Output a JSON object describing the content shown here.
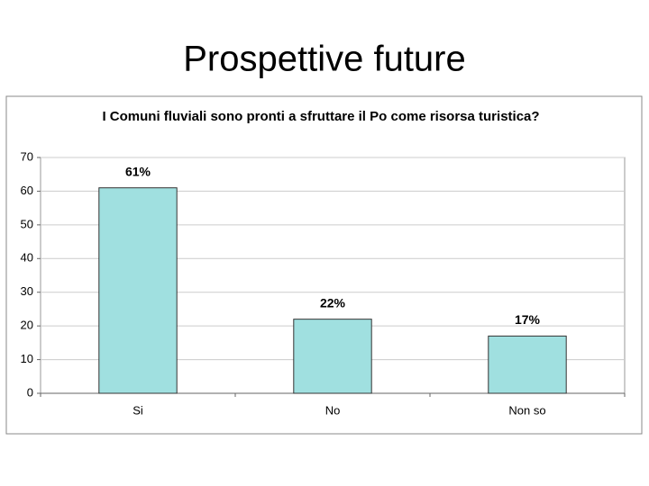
{
  "page_title": "Prospettive future",
  "chart_data": {
    "type": "bar",
    "title": "I Comuni fluviali sono pronti a sfruttare il Po come risorsa turistica?",
    "categories": [
      "Si",
      "No",
      "Non so"
    ],
    "values": [
      61,
      22,
      17
    ],
    "value_labels": [
      "61%",
      "22%",
      "17%"
    ],
    "color": "#a0e0e0",
    "ylim": [
      0,
      70
    ],
    "yticks": [
      0,
      10,
      20,
      30,
      40,
      50,
      60,
      70
    ],
    "grid": true
  }
}
